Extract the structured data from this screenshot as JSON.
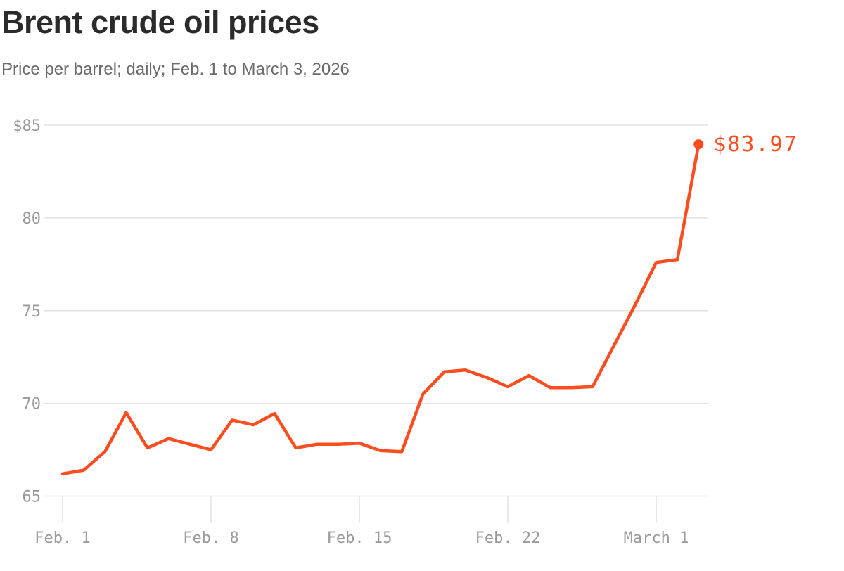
{
  "header": {
    "title": "Brent crude oil prices",
    "subtitle": "Price per barrel; daily; Feb. 1 to March 3, 2026"
  },
  "chart_data": {
    "type": "line",
    "title": "Brent crude oil prices",
    "subtitle": "Price per barrel; daily; Feb. 1 to March 3, 2026",
    "x": [
      "Feb. 1",
      "Feb. 2",
      "Feb. 3",
      "Feb. 4",
      "Feb. 5",
      "Feb. 6",
      "Feb. 7",
      "Feb. 8",
      "Feb. 9",
      "Feb. 10",
      "Feb. 11",
      "Feb. 12",
      "Feb. 13",
      "Feb. 14",
      "Feb. 15",
      "Feb. 16",
      "Feb. 17",
      "Feb. 18",
      "Feb. 19",
      "Feb. 20",
      "Feb. 21",
      "Feb. 22",
      "Feb. 23",
      "Feb. 24",
      "Feb. 25",
      "Feb. 26",
      "Feb. 27",
      "Feb. 28",
      "March 1",
      "March 2",
      "March 3"
    ],
    "values": [
      66.2,
      66.4,
      67.4,
      69.5,
      67.6,
      68.1,
      67.8,
      67.5,
      69.1,
      68.85,
      69.45,
      67.6,
      67.8,
      67.8,
      67.85,
      67.45,
      67.4,
      70.5,
      71.7,
      71.8,
      71.4,
      70.9,
      71.5,
      70.85,
      70.85,
      70.9,
      73.1,
      75.3,
      77.6,
      77.75,
      83.97
    ],
    "x_tick_labels": [
      "Feb. 1",
      "Feb. 8",
      "Feb. 15",
      "Feb. 22",
      "March 1"
    ],
    "x_tick_day_indices": [
      0,
      7,
      14,
      21,
      28
    ],
    "y_tick_labels": [
      "$85",
      "80",
      "75",
      "70",
      "65"
    ],
    "y_tick_values": [
      85,
      80,
      75,
      70,
      65
    ],
    "ylim": [
      65,
      85
    ],
    "end_point_label": "$83.97",
    "end_point_value": 83.97,
    "grid": "horizontal-only",
    "legend_position": "none",
    "colors": {
      "line": "#fb4e20",
      "end_label": "#fb4e20",
      "grid": "#e3e3e3",
      "axis_text": "#9b9b9b",
      "title": "#2b2b2b",
      "subtitle": "#6b6b6b",
      "background": "#ffffff"
    }
  }
}
